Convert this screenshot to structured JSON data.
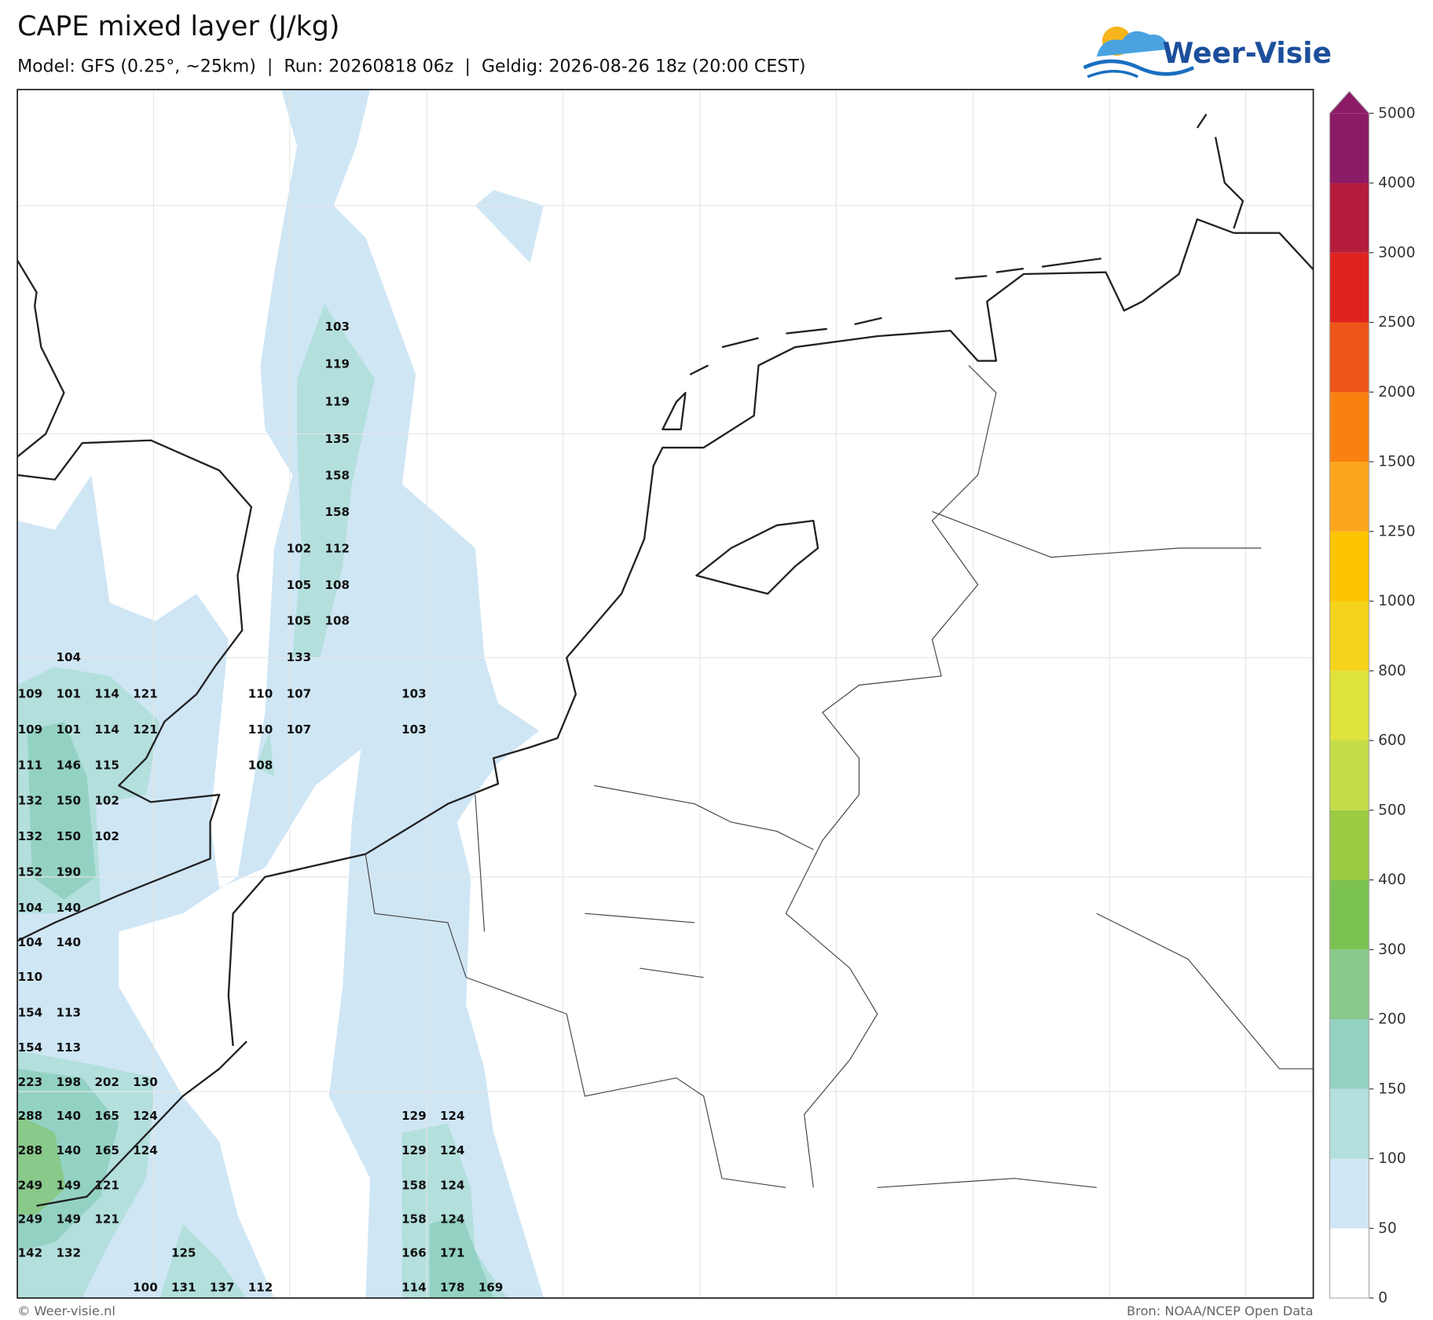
{
  "header": {
    "title": "CAPE mixed layer (J/kg)",
    "subtitle": "Model: GFS (0.25°, ~25km)  |  Run: 20260818 06z  |  Geldig: 2026-08-26 18z (20:00 CEST)",
    "logo": "Weer-Visie"
  },
  "colorbar": {
    "levels": [
      0,
      50,
      100,
      150,
      200,
      300,
      400,
      500,
      600,
      800,
      1000,
      1250,
      1500,
      2000,
      2500,
      3000,
      4000,
      5000
    ],
    "colors": [
      "#ffffff",
      "#cfe6f5",
      "#b3dfdc",
      "#93d2c3",
      "#89c98a",
      "#7cc253",
      "#9bcb42",
      "#c3dc48",
      "#dde23c",
      "#f4d31c",
      "#fcc300",
      "#fca51c",
      "#f98110",
      "#ee5518",
      "#de231f",
      "#b51d3d",
      "#8c1b66"
    ]
  },
  "map": {
    "grid_labels": [
      103,
      119,
      119,
      135,
      158,
      158,
      102,
      112,
      105,
      108,
      105,
      108,
      104,
      133,
      109,
      101,
      114,
      121,
      110,
      107,
      103,
      109,
      101,
      114,
      121,
      110,
      107,
      103,
      111,
      146,
      115,
      108,
      132,
      150,
      102,
      132,
      150,
      102,
      152,
      190,
      104,
      140,
      104,
      140,
      110,
      154,
      113,
      154,
      113,
      223,
      198,
      202,
      130,
      288,
      140,
      165,
      124,
      129,
      124,
      288,
      140,
      165,
      124,
      129,
      124,
      249,
      149,
      121,
      158,
      124,
      249,
      149,
      121,
      158,
      124,
      142,
      132,
      125,
      166,
      171,
      100,
      131,
      137,
      112,
      114,
      178,
      169
    ]
  },
  "footer": {
    "left": "© Weer-visie.nl",
    "right": "Bron: NOAA/NCEP Open Data"
  }
}
